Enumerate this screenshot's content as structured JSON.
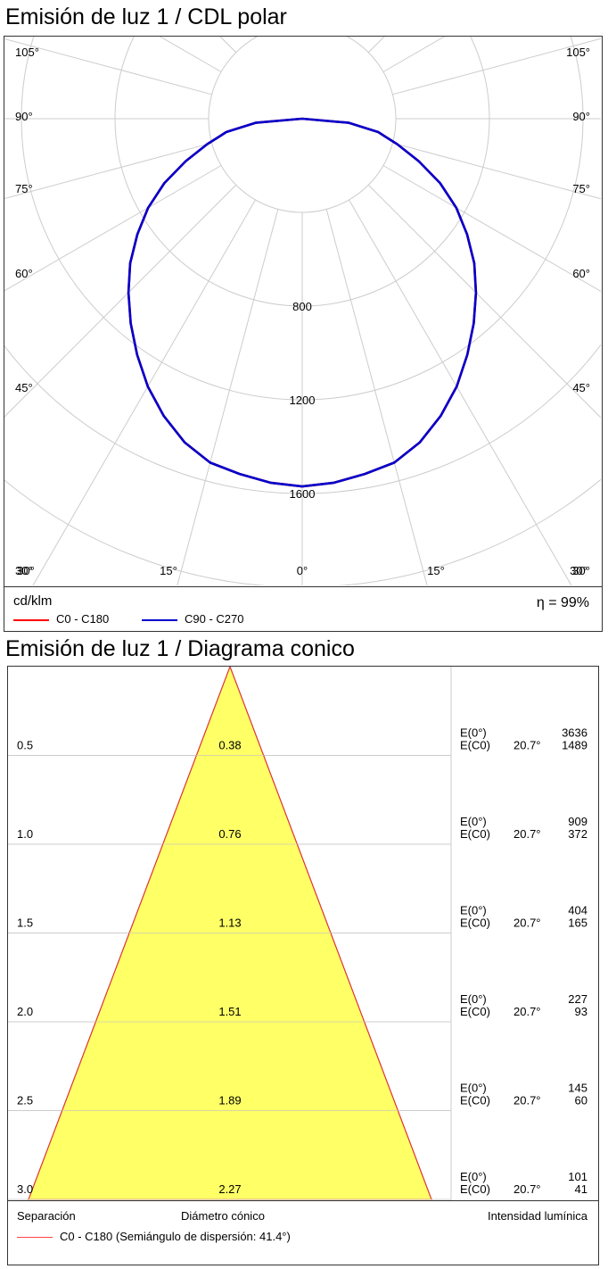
{
  "polar": {
    "title": "Emisión de luz 1 / CDL polar",
    "unit": "cd/klm",
    "efficiency": "η = 99%",
    "legend": [
      {
        "label": "C0 - C180",
        "color": "#ff0000"
      },
      {
        "label": "C90 - C270",
        "color": "#0000cc"
      }
    ]
  },
  "cone": {
    "title": "Emisión de luz 1 / Diagrama conico",
    "footer": {
      "left": "Separación",
      "center": "Diámetro cónico",
      "right": "Intensidad lumínica"
    },
    "legend": {
      "label": "C0 - C180 (Semiángulo de dispersión: 41.4°)",
      "color": "#ff4444"
    }
  },
  "chart_data": [
    {
      "type": "polar",
      "title": "Emisión de luz 1 / CDL polar",
      "unit": "cd/klm",
      "radial_ticks": [
        800,
        1200,
        1600
      ],
      "angle_labels_left": [
        "105°",
        "90°",
        "75°",
        "60°",
        "45°",
        "30°"
      ],
      "angle_labels_bottom": [
        "30°",
        "15°",
        "0°",
        "15°",
        "30°"
      ],
      "series": [
        {
          "name": "C90 - C270",
          "color": "#0000cc",
          "angles": [
            0,
            5,
            10,
            15,
            20,
            25,
            30,
            35,
            40,
            45,
            50,
            55,
            60,
            65,
            70,
            75,
            78,
            80,
            85,
            90
          ],
          "values": [
            1570,
            1560,
            1540,
            1520,
            1470,
            1400,
            1320,
            1230,
            1140,
            1050,
            960,
            860,
            760,
            650,
            530,
            420,
            360,
            330,
            200,
            0
          ]
        },
        {
          "name": "C0 - C180",
          "color": "#ff0000",
          "angles": [
            0,
            5,
            10,
            15,
            20,
            25,
            30,
            35,
            40,
            45,
            50,
            55,
            60,
            65,
            70,
            75,
            78,
            80,
            85,
            90
          ],
          "values": [
            1570,
            1560,
            1540,
            1520,
            1470,
            1400,
            1320,
            1230,
            1140,
            1050,
            960,
            860,
            760,
            650,
            530,
            420,
            360,
            330,
            200,
            0
          ]
        }
      ],
      "efficiency": "η = 99%"
    },
    {
      "type": "table",
      "title": "Emisión de luz 1 / Diagrama conico",
      "half_angle": "41.4°",
      "rows": [
        {
          "distance": "0.5",
          "diameter": "0.38",
          "e0_label": "E(0°)",
          "e0": "3636",
          "ec0_label": "E(C0)",
          "angle": "20.7°",
          "ec0": "1489"
        },
        {
          "distance": "1.0",
          "diameter": "0.76",
          "e0_label": "E(0°)",
          "e0": "909",
          "ec0_label": "E(C0)",
          "angle": "20.7°",
          "ec0": "372"
        },
        {
          "distance": "1.5",
          "diameter": "1.13",
          "e0_label": "E(0°)",
          "e0": "404",
          "ec0_label": "E(C0)",
          "angle": "20.7°",
          "ec0": "165"
        },
        {
          "distance": "2.0",
          "diameter": "1.51",
          "e0_label": "E(0°)",
          "e0": "227",
          "ec0_label": "E(C0)",
          "angle": "20.7°",
          "ec0": "93"
        },
        {
          "distance": "2.5",
          "diameter": "1.89",
          "e0_label": "E(0°)",
          "e0": "145",
          "ec0_label": "E(C0)",
          "angle": "20.7°",
          "ec0": "60"
        },
        {
          "distance": "3.0",
          "diameter": "2.27",
          "e0_label": "E(0°)",
          "e0": "101",
          "ec0_label": "E(C0)",
          "angle": "20.7°",
          "ec0": "41"
        }
      ]
    }
  ]
}
